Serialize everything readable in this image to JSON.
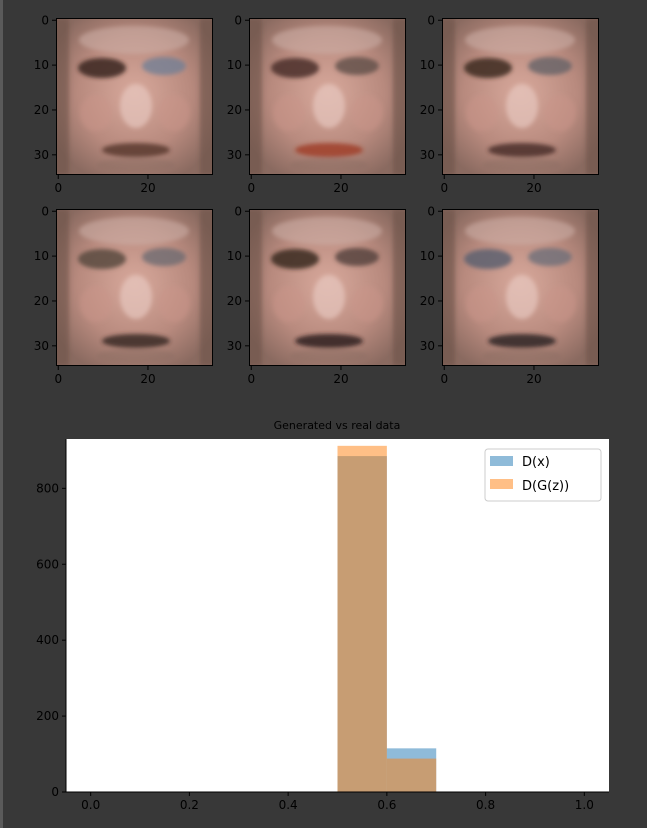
{
  "colors": {
    "background": "#383838",
    "text": "#000000",
    "axis": "#000000",
    "series_dx": "#1f77b4",
    "series_dgz": "#ff7f0e",
    "overlap": "#c8996e"
  },
  "faces": {
    "xticks": [
      "0",
      "20"
    ],
    "yticks": [
      "0",
      "10",
      "20",
      "30"
    ],
    "panels": [
      {
        "id": "face-1"
      },
      {
        "id": "face-2"
      },
      {
        "id": "face-3"
      },
      {
        "id": "face-4"
      },
      {
        "id": "face-5"
      },
      {
        "id": "face-6"
      }
    ]
  },
  "chart_data": {
    "type": "bar",
    "title": "Generated vs real data",
    "xlabel": "",
    "ylabel": "",
    "xlim": [
      -0.05,
      1.05
    ],
    "ylim": [
      0,
      930
    ],
    "xticks": [
      "0.0",
      "0.2",
      "0.4",
      "0.6",
      "0.8",
      "1.0"
    ],
    "yticks": [
      "0",
      "200",
      "400",
      "600",
      "800"
    ],
    "grid": false,
    "legend_position": "top-right",
    "bin_edges": [
      0.0,
      0.1,
      0.2,
      0.3,
      0.4,
      0.5,
      0.6,
      0.7,
      0.8,
      0.9,
      1.0
    ],
    "series": [
      {
        "name": "D(x)",
        "color": "#1f77b4",
        "alpha": 0.5,
        "values": [
          0,
          0,
          0,
          0,
          0,
          885,
          115,
          0,
          0,
          0
        ]
      },
      {
        "name": "D(G(z))",
        "color": "#ff7f0e",
        "alpha": 0.5,
        "values": [
          0,
          0,
          0,
          0,
          0,
          912,
          88,
          0,
          0,
          0
        ]
      }
    ]
  }
}
